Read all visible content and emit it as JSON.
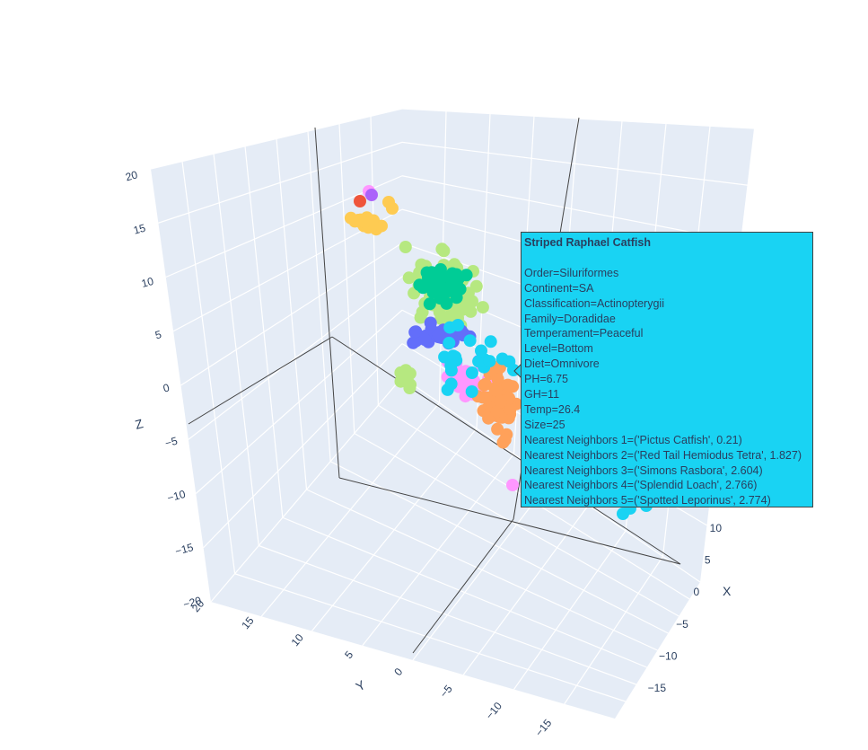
{
  "chart_data": {
    "type": "scatter3d",
    "axes": {
      "x": {
        "title": "X",
        "ticks": [
          "−15",
          "−10",
          "−5",
          "0",
          "5",
          "10"
        ]
      },
      "y": {
        "title": "Y",
        "ticks": [
          "−15",
          "−10",
          "−5",
          "0",
          "5",
          "10",
          "15",
          "20"
        ]
      },
      "z": {
        "title": "Z",
        "ticks": [
          "−20",
          "−15",
          "−10",
          "−5",
          "0",
          "5",
          "10",
          "15",
          "20"
        ]
      }
    },
    "colors": {
      "light_green": "#b6e880",
      "teal": "#00cc96",
      "indigo": "#636efa",
      "cyan": "#19d3f3",
      "orange": "#ffa15a",
      "pink": "#ff97ff",
      "yellow": "#fecb52",
      "red": "#ef553b",
      "purple": "#ab63fa"
    },
    "legend": "none",
    "grid": true
  },
  "tooltip": {
    "title": "Striped Raphael Catfish",
    "rows": [
      "Order=Siluriformes",
      "Continent=SA",
      "Classification=Actinopterygii",
      "Family=Doradidae",
      "Temperament=Peaceful",
      "Level=Bottom",
      "Diet=Omnivore",
      "PH=6.75",
      "GH=11",
      "Temp=26.4",
      "Size=25",
      "Nearest Neighbors 1=('Pictus Catfish', 0.21)",
      "Nearest Neighbors 2=('Red Tail Hemiodus Tetra', 1.827)",
      "Nearest Neighbors 3=('Simons Rasbora', 2.604)",
      "Nearest Neighbors 4=('Splendid Loach', 2.766)",
      "Nearest Neighbors 5=('Spotted Leporinus', 2.774)"
    ]
  }
}
